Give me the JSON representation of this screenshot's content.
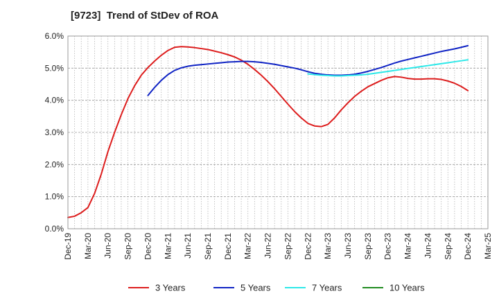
{
  "chart_data": {
    "type": "line",
    "title": "[9723]  Trend of StDev of ROA",
    "xlabel": "",
    "ylabel": "",
    "x_ticks": [
      "Dec-19",
      "Mar-20",
      "Jun-20",
      "Sep-20",
      "Dec-20",
      "Mar-21",
      "Jun-21",
      "Sep-21",
      "Dec-21",
      "Mar-22",
      "Jun-22",
      "Sep-22",
      "Dec-22",
      "Mar-23",
      "Jun-23",
      "Sep-23",
      "Dec-23",
      "Mar-24",
      "Jun-24",
      "Sep-24",
      "Dec-24",
      "Mar-25"
    ],
    "y_ticks": [
      "0.0%",
      "1.0%",
      "2.0%",
      "3.0%",
      "4.0%",
      "5.0%",
      "6.0%"
    ],
    "ylim": [
      0,
      6
    ],
    "y_unit": "%",
    "grid": true,
    "legend_position": "bottom",
    "series": [
      {
        "name": "3 Years",
        "color": "#dd1c1c",
        "x": [
          "Dec-19",
          "Jan-20",
          "Feb-20",
          "Mar-20",
          "Apr-20",
          "May-20",
          "Jun-20",
          "Jul-20",
          "Aug-20",
          "Sep-20",
          "Oct-20",
          "Nov-20",
          "Dec-20",
          "Jan-21",
          "Feb-21",
          "Mar-21",
          "Apr-21",
          "May-21",
          "Jun-21",
          "Jul-21",
          "Aug-21",
          "Sep-21",
          "Oct-21",
          "Nov-21",
          "Dec-21",
          "Jan-22",
          "Feb-22",
          "Mar-22",
          "Apr-22",
          "May-22",
          "Jun-22",
          "Jul-22",
          "Aug-22",
          "Sep-22",
          "Oct-22",
          "Nov-22",
          "Dec-22",
          "Jan-23",
          "Feb-23",
          "Mar-23",
          "Apr-23",
          "May-23",
          "Jun-23",
          "Jul-23",
          "Aug-23",
          "Sep-23",
          "Oct-23",
          "Nov-23",
          "Dec-23",
          "Jan-24",
          "Feb-24",
          "Mar-24",
          "Apr-24",
          "May-24",
          "Jun-24",
          "Jul-24",
          "Aug-24",
          "Sep-24",
          "Oct-24",
          "Nov-24",
          "Dec-24"
        ],
        "values": [
          0.35,
          0.39,
          0.5,
          0.66,
          1.1,
          1.7,
          2.4,
          3.0,
          3.55,
          4.05,
          4.45,
          4.78,
          5.02,
          5.22,
          5.4,
          5.55,
          5.65,
          5.67,
          5.66,
          5.64,
          5.61,
          5.58,
          5.53,
          5.48,
          5.42,
          5.35,
          5.25,
          5.12,
          4.96,
          4.78,
          4.58,
          4.36,
          4.12,
          3.88,
          3.65,
          3.45,
          3.28,
          3.2,
          3.18,
          3.25,
          3.45,
          3.7,
          3.92,
          4.12,
          4.28,
          4.42,
          4.52,
          4.62,
          4.7,
          4.74,
          4.72,
          4.68,
          4.66,
          4.66,
          4.67,
          4.67,
          4.65,
          4.6,
          4.53,
          4.43,
          4.3
        ]
      },
      {
        "name": "5 Years",
        "color": "#0e22c4",
        "x": [
          "Dec-20",
          "Jan-21",
          "Feb-21",
          "Mar-21",
          "Apr-21",
          "May-21",
          "Jun-21",
          "Jul-21",
          "Aug-21",
          "Sep-21",
          "Oct-21",
          "Nov-21",
          "Dec-21",
          "Jan-22",
          "Feb-22",
          "Mar-22",
          "Apr-22",
          "May-22",
          "Jun-22",
          "Jul-22",
          "Aug-22",
          "Sep-22",
          "Oct-22",
          "Nov-22",
          "Dec-22",
          "Jan-23",
          "Feb-23",
          "Mar-23",
          "Apr-23",
          "May-23",
          "Jun-23",
          "Jul-23",
          "Aug-23",
          "Sep-23",
          "Oct-23",
          "Nov-23",
          "Dec-23",
          "Jan-24",
          "Feb-24",
          "Mar-24",
          "Apr-24",
          "May-24",
          "Jun-24",
          "Jul-24",
          "Aug-24",
          "Sep-24",
          "Oct-24",
          "Nov-24",
          "Dec-24"
        ],
        "values": [
          4.15,
          4.4,
          4.62,
          4.8,
          4.93,
          5.01,
          5.06,
          5.09,
          5.11,
          5.13,
          5.15,
          5.17,
          5.19,
          5.2,
          5.21,
          5.21,
          5.2,
          5.18,
          5.15,
          5.12,
          5.08,
          5.04,
          5.0,
          4.95,
          4.89,
          4.84,
          4.81,
          4.79,
          4.78,
          4.78,
          4.79,
          4.81,
          4.85,
          4.9,
          4.96,
          5.02,
          5.09,
          5.16,
          5.22,
          5.27,
          5.32,
          5.37,
          5.42,
          5.47,
          5.52,
          5.56,
          5.6,
          5.65,
          5.7
        ]
      },
      {
        "name": "7 Years",
        "color": "#2ce8e8",
        "x": [
          "Dec-22",
          "Jan-23",
          "Feb-23",
          "Mar-23",
          "Apr-23",
          "May-23",
          "Jun-23",
          "Jul-23",
          "Aug-23",
          "Sep-23",
          "Oct-23",
          "Nov-23",
          "Dec-23",
          "Jan-24",
          "Feb-24",
          "Mar-24",
          "Apr-24",
          "May-24",
          "Jun-24",
          "Jul-24",
          "Aug-24",
          "Sep-24",
          "Oct-24",
          "Nov-24",
          "Dec-24"
        ],
        "values": [
          4.82,
          4.8,
          4.78,
          4.77,
          4.76,
          4.76,
          4.77,
          4.78,
          4.79,
          4.81,
          4.84,
          4.87,
          4.9,
          4.93,
          4.96,
          4.99,
          5.02,
          5.05,
          5.08,
          5.11,
          5.14,
          5.17,
          5.2,
          5.23,
          5.26
        ]
      },
      {
        "name": "10 Years",
        "color": "#1f8a1f",
        "x": [],
        "values": []
      }
    ]
  }
}
